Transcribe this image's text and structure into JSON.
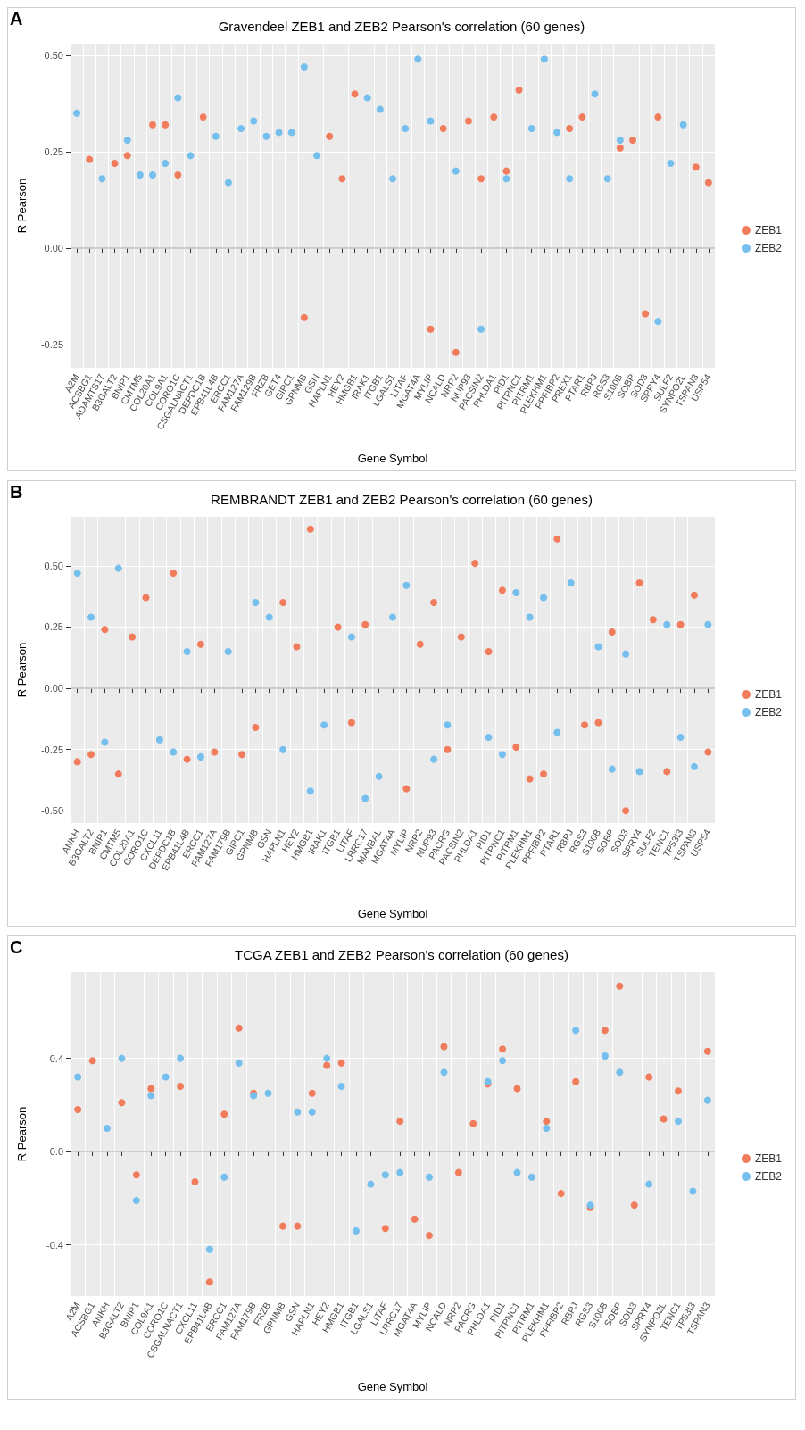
{
  "chart_data": [
    {
      "type": "scatter",
      "title": "Gravendeel ZEB1 and ZEB2 Pearson's correlation (60 genes)",
      "xlabel": "Gene Symbol",
      "ylabel": "R Pearson",
      "annotations": [
        "A"
      ],
      "categories": [
        "A2M",
        "ACSBG1",
        "ADAMTS17",
        "B3GALT2",
        "BNIP1",
        "CMTM5",
        "COL20A1",
        "COL9A1",
        "CORO1C",
        "CSGALNACT1",
        "DEPDC1B",
        "EPB41L4B",
        "ERCC1",
        "FAM127A",
        "FAM129B",
        "FRZB",
        "GET4",
        "GIPC1",
        "GPNMB",
        "GSN",
        "HAPLN1",
        "HEY2",
        "HMGB1",
        "IRAK1",
        "ITGB1",
        "LGALS1",
        "LITAF",
        "MGAT4A",
        "MYLIP",
        "NCALD",
        "NRP2",
        "NUP93",
        "PACSIN2",
        "PHLDA1",
        "PID1",
        "PITPNC1",
        "PITRM1",
        "PLEKHM1",
        "PPFIBP2",
        "PREX1",
        "PTAR1",
        "RBPJ",
        "RGS3",
        "S100B",
        "SOBP",
        "SOD3",
        "SPRY4",
        "SULF2",
        "SYNPO2L",
        "TSPAN3",
        "USP54"
      ],
      "series": [
        {
          "name": "ZEB1",
          "color": "#f17c5b",
          "values": [
            null,
            0.23,
            null,
            0.22,
            0.24,
            null,
            0.32,
            0.32,
            0.19,
            null,
            0.34,
            null,
            null,
            null,
            null,
            null,
            null,
            null,
            -0.18,
            null,
            0.29,
            0.18,
            0.4,
            null,
            null,
            null,
            null,
            null,
            -0.21,
            0.31,
            -0.27,
            0.33,
            0.18,
            0.34,
            0.2,
            0.41,
            null,
            null,
            null,
            0.31,
            0.34,
            null,
            null,
            0.26,
            0.28,
            -0.17,
            0.34,
            null,
            null,
            0.21,
            0.17
          ]
        },
        {
          "name": "ZEB2",
          "color": "#74bfee",
          "values": [
            0.35,
            null,
            0.18,
            null,
            0.28,
            0.19,
            0.19,
            0.22,
            0.39,
            0.24,
            null,
            0.29,
            0.17,
            0.31,
            0.33,
            0.29,
            0.3,
            0.3,
            0.47,
            0.24,
            null,
            null,
            null,
            0.39,
            0.36,
            0.18,
            0.31,
            0.49,
            0.33,
            null,
            0.2,
            null,
            -0.21,
            null,
            0.18,
            null,
            0.31,
            0.49,
            0.3,
            0.18,
            null,
            0.4,
            0.18,
            0.28,
            null,
            null,
            -0.19,
            0.22,
            0.32,
            null,
            null
          ]
        }
      ],
      "ylim": [
        -0.31,
        0.53
      ],
      "yticks": [
        {
          "value": -0.25,
          "label": "-0.25"
        },
        {
          "value": 0,
          "label": "0.00"
        },
        {
          "value": 0.25,
          "label": "0.25"
        },
        {
          "value": 0.5,
          "label": "0.50"
        }
      ],
      "ref_lines": [
        {
          "axis": "y",
          "value": 0,
          "color": "#bebebe"
        }
      ],
      "grid": true,
      "legend": "right",
      "marker": "circle"
    },
    {
      "type": "scatter",
      "title": "REMBRANDT ZEB1 and ZEB2 Pearson's correlation (60 genes)",
      "xlabel": "Gene Symbol",
      "ylabel": "R Pearson",
      "annotations": [
        "B"
      ],
      "categories": [
        "ANKH",
        "B3GALT2",
        "BNIP1",
        "CMTM5",
        "COL20A1",
        "CORO1C",
        "CXCL11",
        "DEPDC1B",
        "EPB41L4B",
        "ERCC1",
        "FAM127A",
        "FAM179B",
        "GIPC1",
        "GPNMB",
        "GSN",
        "HAPLN1",
        "HEY2",
        "HMGB1",
        "IRAK1",
        "ITGB1",
        "LITAF",
        "LRRC17",
        "MANBAL",
        "MGAT4A",
        "MYLIP",
        "NRP2",
        "NUP93",
        "PACRG",
        "PACSIN2",
        "PHLDA1",
        "PID1",
        "PITPNC1",
        "PITRM1",
        "PLEKHM1",
        "PPFIBP2",
        "PTAR1",
        "RBPJ",
        "RGS3",
        "S100B",
        "SOBP",
        "SOD3",
        "SPRY4",
        "SULF2",
        "TENC1",
        "TP53I3",
        "TSPAN3",
        "USP54"
      ],
      "series": [
        {
          "name": "ZEB1",
          "color": "#f17c5b",
          "values": [
            -0.3,
            -0.27,
            0.24,
            -0.35,
            0.21,
            0.37,
            null,
            0.47,
            -0.29,
            0.18,
            -0.26,
            null,
            -0.27,
            -0.16,
            null,
            0.35,
            0.17,
            0.65,
            null,
            0.25,
            -0.14,
            0.26,
            null,
            null,
            -0.41,
            0.18,
            0.35,
            -0.25,
            0.21,
            0.51,
            0.15,
            0.4,
            -0.24,
            -0.37,
            -0.35,
            0.61,
            null,
            -0.15,
            -0.14,
            0.23,
            -0.5,
            0.43,
            0.28,
            -0.34,
            0.26,
            0.38,
            -0.26
          ]
        },
        {
          "name": "ZEB2",
          "color": "#74bfee",
          "values": [
            0.47,
            0.29,
            -0.22,
            0.49,
            null,
            null,
            -0.21,
            -0.26,
            0.15,
            -0.28,
            null,
            0.15,
            null,
            0.35,
            0.29,
            -0.25,
            null,
            -0.42,
            -0.15,
            null,
            0.21,
            -0.45,
            -0.36,
            0.29,
            0.42,
            null,
            -0.29,
            -0.15,
            null,
            null,
            -0.2,
            -0.27,
            0.39,
            0.29,
            0.37,
            -0.18,
            0.43,
            null,
            0.17,
            -0.33,
            0.14,
            -0.34,
            null,
            0.26,
            -0.2,
            -0.32,
            0.26
          ]
        }
      ],
      "ylim": [
        -0.55,
        0.7
      ],
      "yticks": [
        {
          "value": -0.5,
          "label": "-0.50"
        },
        {
          "value": -0.25,
          "label": "-0.25"
        },
        {
          "value": 0,
          "label": "0.00"
        },
        {
          "value": 0.25,
          "label": "0.25"
        },
        {
          "value": 0.5,
          "label": "0.50"
        }
      ],
      "ref_lines": [
        {
          "axis": "y",
          "value": 0,
          "color": "#bebebe"
        }
      ],
      "grid": true,
      "legend": "right",
      "marker": "circle"
    },
    {
      "type": "scatter",
      "title": "TCGA ZEB1 and ZEB2 Pearson's correlation (60 genes)",
      "xlabel": "Gene Symbol",
      "ylabel": "R Pearson",
      "annotations": [
        "C"
      ],
      "categories": [
        "A2M",
        "ACSBG1",
        "ANKH",
        "B3GALT2",
        "BNIP1",
        "COL9A1",
        "CORO1C",
        "CSGALNACT1",
        "CXCL11",
        "EPB41L4B",
        "ERCC1",
        "FAM127A",
        "FAM179B",
        "FRZB",
        "GPNMB",
        "GSN",
        "HAPLN1",
        "HEY2",
        "HMGB1",
        "ITGB1",
        "LGALS1",
        "LITAF",
        "LRRC17",
        "MGAT4A",
        "MYLIP",
        "NCALD",
        "NRP2",
        "PACRG",
        "PHLDA1",
        "PID1",
        "PITPNC1",
        "PITRM1",
        "PLEKHM1",
        "PPFIBP2",
        "RBPJ",
        "RGS3",
        "S100B",
        "SOBP",
        "SOD3",
        "SPRY4",
        "SYNPO2L",
        "TENC1",
        "TP53I3",
        "TSPAN3"
      ],
      "series": [
        {
          "name": "ZEB1",
          "color": "#f17c5b",
          "values": [
            0.18,
            0.39,
            null,
            0.21,
            -0.1,
            0.27,
            null,
            0.28,
            -0.13,
            -0.56,
            0.16,
            0.53,
            0.25,
            null,
            -0.32,
            -0.32,
            0.25,
            0.37,
            0.38,
            null,
            null,
            -0.33,
            0.13,
            -0.29,
            -0.36,
            0.45,
            -0.09,
            0.12,
            0.29,
            0.44,
            0.27,
            null,
            0.13,
            -0.18,
            0.3,
            -0.24,
            0.52,
            0.71,
            -0.23,
            0.32,
            0.14,
            0.26,
            null,
            0.43
          ]
        },
        {
          "name": "ZEB2",
          "color": "#74bfee",
          "values": [
            0.32,
            null,
            0.1,
            0.4,
            -0.21,
            0.24,
            0.32,
            0.4,
            null,
            -0.42,
            -0.11,
            0.38,
            0.24,
            0.25,
            null,
            0.17,
            0.17,
            0.4,
            0.28,
            -0.34,
            -0.14,
            -0.1,
            -0.09,
            null,
            -0.11,
            0.34,
            null,
            null,
            0.3,
            0.39,
            -0.09,
            -0.11,
            0.1,
            null,
            0.52,
            -0.23,
            0.41,
            0.34,
            null,
            -0.14,
            null,
            0.13,
            -0.17,
            0.22
          ]
        }
      ],
      "ylim": [
        -0.62,
        0.77
      ],
      "yticks": [
        {
          "value": -0.4,
          "label": "-0.4"
        },
        {
          "value": 0,
          "label": "0.0"
        },
        {
          "value": 0.4,
          "label": "0.4"
        }
      ],
      "ref_lines": [
        {
          "axis": "y",
          "value": 0,
          "color": "#bebebe"
        }
      ],
      "grid": true,
      "legend": "right",
      "marker": "circle"
    }
  ]
}
